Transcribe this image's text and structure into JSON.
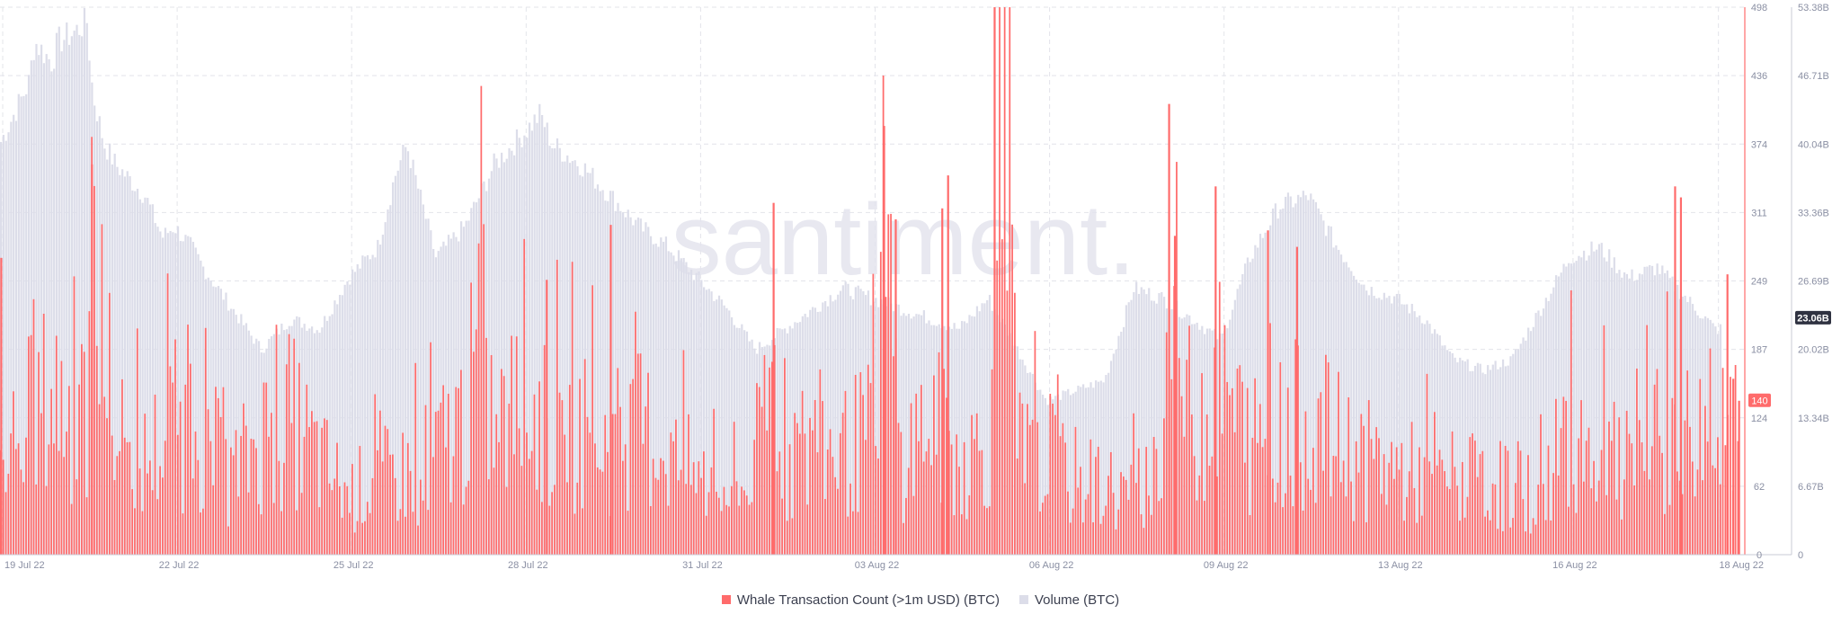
{
  "chart_data": {
    "type": "bar",
    "watermark": "santiment.",
    "colors": {
      "whale": "#ff6b6b",
      "volume": "#dcdde9",
      "grid": "#e3e4ea",
      "badge_dark": "#2f3241"
    },
    "x_ticks": [
      "19 Jul 22",
      "22 Jul 22",
      "25 Jul 22",
      "28 Jul 22",
      "31 Jul 22",
      "03 Aug 22",
      "06 Aug 22",
      "09 Aug 22",
      "13 Aug 22",
      "16 Aug 22",
      "18 Aug 22"
    ],
    "x_tick_positions": [
      0,
      3,
      6,
      9,
      12,
      15,
      18,
      21,
      24,
      27,
      29.5
    ],
    "x_range": [
      0,
      30
    ],
    "y_left": {
      "ticks": [
        "498",
        "436",
        "374",
        "311",
        "249",
        "187",
        "124",
        "62",
        "0"
      ],
      "range": [
        0,
        498
      ]
    },
    "y_right": {
      "ticks": [
        "53.38B",
        "46.71B",
        "40.04B",
        "33.36B",
        "26.69B",
        "20.02B",
        "13.34B",
        "6.67B",
        "0"
      ],
      "range": [
        0,
        53.38
      ],
      "unit": "B"
    },
    "last_values": {
      "whale": "140",
      "volume": "23.06B"
    },
    "series": [
      {
        "name": "Whale Transaction Count (>1m USD) (BTC)",
        "axis": "left",
        "anchor_x": [
          0,
          0.5,
          1,
          1.5,
          1.6,
          2,
          2.5,
          3,
          3.5,
          4,
          4.5,
          5,
          5.5,
          6,
          6.5,
          7,
          7.5,
          8,
          8.3,
          8.5,
          9,
          9.5,
          10,
          10.5,
          11,
          11.5,
          12,
          12.5,
          13,
          13.3,
          13.5,
          14,
          14.5,
          15,
          15.2,
          15.5,
          16,
          16.5,
          17,
          17.3,
          17.5,
          18,
          18.5,
          19,
          19.5,
          20,
          20.1,
          20.5,
          21,
          21.5,
          22,
          22.5,
          23,
          23.5,
          24,
          24.5,
          25,
          25.5,
          26,
          26.5,
          27,
          27.5,
          28,
          28.5,
          29,
          29.5
        ],
        "anchor_y": [
          120,
          160,
          190,
          140,
          350,
          120,
          110,
          150,
          140,
          90,
          140,
          160,
          110,
          70,
          90,
          95,
          120,
          160,
          250,
          140,
          180,
          140,
          150,
          130,
          150,
          120,
          90,
          70,
          90,
          220,
          110,
          130,
          120,
          140,
          380,
          110,
          160,
          110,
          130,
          498,
          120,
          110,
          90,
          80,
          70,
          110,
          290,
          150,
          200,
          130,
          140,
          160,
          130,
          110,
          100,
          90,
          90,
          80,
          80,
          70,
          150,
          120,
          100,
          130,
          140,
          140
        ],
        "spikes": [
          [
            0.02,
            270
          ],
          [
            1.58,
            355
          ],
          [
            9.4,
            250
          ],
          [
            10.5,
            300
          ],
          [
            13.3,
            320
          ],
          [
            15.2,
            390
          ],
          [
            15.4,
            305
          ],
          [
            16.2,
            315
          ],
          [
            16.3,
            345
          ],
          [
            17.1,
            498
          ],
          [
            20.1,
            410
          ],
          [
            20.2,
            290
          ],
          [
            20.9,
            335
          ],
          [
            21.8,
            295
          ],
          [
            22.3,
            280
          ],
          [
            28.8,
            335
          ],
          [
            28.9,
            325
          ],
          [
            29.7,
            255
          ],
          [
            29.8,
            160
          ],
          [
            29.9,
            140
          ]
        ]
      },
      {
        "name": "Volume (BTC)",
        "axis": "right",
        "anchor_x": [
          0,
          0.5,
          0.6,
          0.9,
          1,
          1.3,
          1.5,
          1.6,
          1.8,
          2,
          2.5,
          2.8,
          3,
          3.3,
          3.5,
          4,
          4.5,
          5,
          5.5,
          6,
          6.5,
          6.8,
          7,
          7.5,
          8,
          8.5,
          9,
          9.3,
          9.5,
          10,
          10.5,
          11,
          11.5,
          12,
          12.5,
          13,
          13.5,
          14,
          14.5,
          15,
          15.5,
          16,
          16.5,
          17,
          17.5,
          18,
          18.5,
          19,
          19.5,
          20,
          20.5,
          21,
          21.5,
          22,
          22.5,
          23,
          23.5,
          24,
          24.5,
          25,
          25.5,
          26,
          26.5,
          27,
          27.5,
          28,
          28.5,
          29,
          29.5
        ],
        "anchor_y": [
          40,
          46,
          50,
          48,
          50,
          51,
          52,
          45,
          40,
          38,
          35,
          31,
          32,
          30,
          28,
          24,
          20,
          23,
          22,
          27,
          30,
          37,
          40,
          29,
          32,
          38,
          41,
          43,
          40,
          38,
          35,
          32,
          30,
          27,
          24,
          20,
          22,
          24,
          26,
          25,
          24,
          23,
          22,
          25,
          20,
          15,
          16,
          17,
          26,
          25,
          23,
          21,
          29,
          34,
          35,
          30,
          26,
          25,
          23,
          19,
          18,
          19,
          24,
          29,
          30,
          27,
          28,
          25,
          22
        ]
      }
    ]
  },
  "legend": {
    "whale": "Whale Transaction Count (>1m USD) (BTC)",
    "volume": "Volume (BTC)"
  }
}
